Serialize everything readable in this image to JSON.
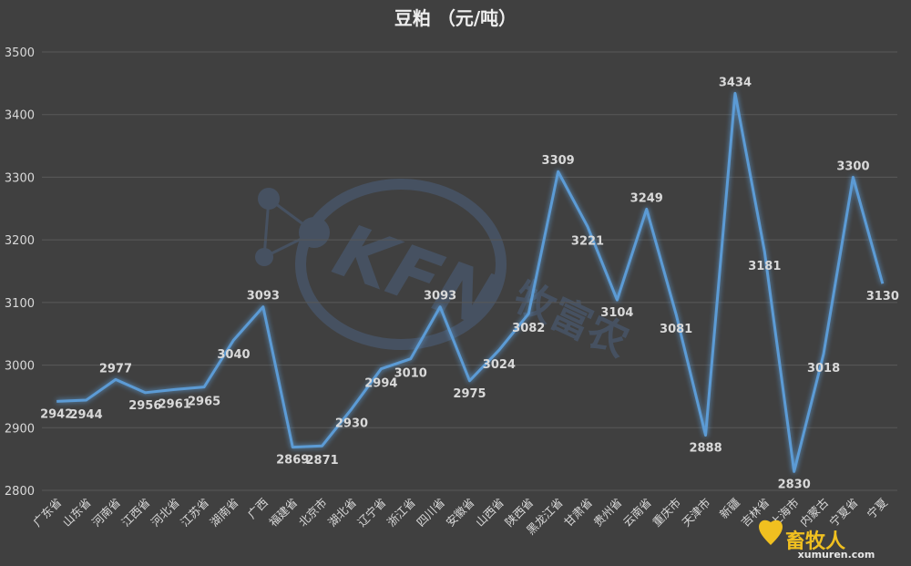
{
  "chart_data": {
    "type": "line",
    "title": "豆粕 （元/吨）",
    "categories": [
      "广东省",
      "山东省",
      "河南省",
      "江西省",
      "河北省",
      "江苏省",
      "湖南省",
      "广西",
      "福建省",
      "北京市",
      "湖北省",
      "辽宁省",
      "浙江省",
      "四川省",
      "安徽省",
      "山西省",
      "陕西省",
      "黑龙江省",
      "甘肃省",
      "贵州省",
      "云南省",
      "重庆市",
      "天津市",
      "新疆",
      "吉林省",
      "上海市",
      "内蒙古",
      "宁夏省",
      "宁夏"
    ],
    "series": [
      {
        "values": [
          2942,
          2944,
          2977,
          2956,
          2961,
          2965,
          3040,
          3093,
          2869,
          2871,
          2930,
          2994,
          3010,
          3093,
          2975,
          3024,
          3082,
          3309,
          3221,
          3104,
          3249,
          3081,
          2888,
          3434,
          3181,
          2830,
          3018,
          3300,
          3130
        ]
      }
    ],
    "ylim": [
      2800,
      3500
    ],
    "yticks": [
      2800,
      2900,
      3000,
      3100,
      3200,
      3300,
      3400,
      3500
    ],
    "grid": true,
    "legend": "none",
    "line_color": "#5b9bd5"
  },
  "watermark": {
    "brand": "KFN",
    "name": "牧富农",
    "corner": "畜牧人",
    "corner_url": "xumuren.com"
  }
}
